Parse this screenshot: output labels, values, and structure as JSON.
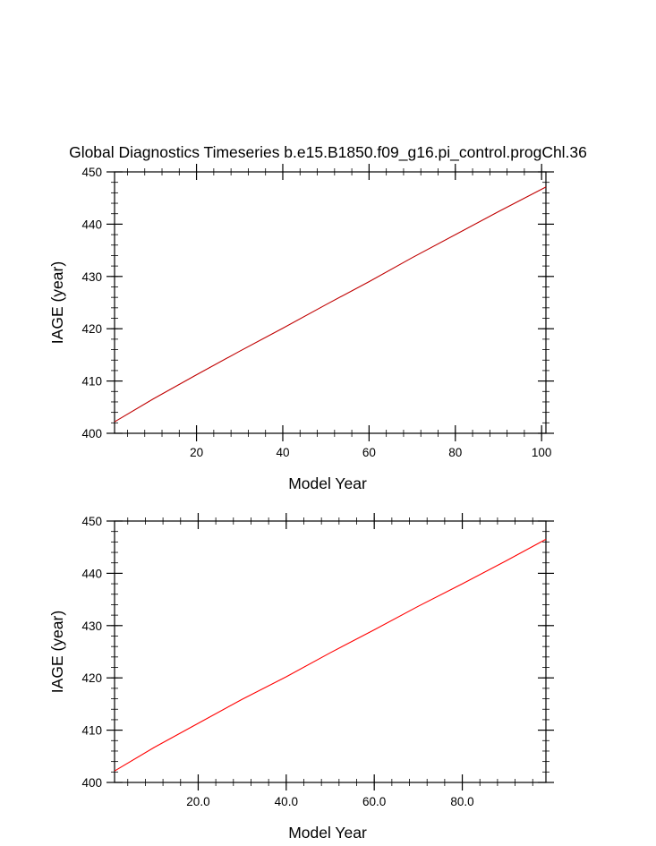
{
  "title": "Global Diagnostics Timeseries b.e15.B1850.f09_g16.pi_control.progChl.36",
  "chart_data": [
    {
      "type": "line",
      "xlabel": "Model Year",
      "ylabel": "IAGE (year)",
      "xlim": [
        1,
        101
      ],
      "ylim": [
        400,
        450
      ],
      "xticks": [
        20,
        40,
        60,
        80,
        100
      ],
      "xtick_labels": [
        "20",
        "40",
        "60",
        "80",
        "100"
      ],
      "yticks": [
        400,
        410,
        420,
        430,
        440,
        450
      ],
      "ytick_labels": [
        "400",
        "410",
        "420",
        "430",
        "440",
        "450"
      ],
      "series": [
        {
          "color": "#c00000",
          "x": [
            1,
            10,
            20,
            30,
            40,
            50,
            60,
            70,
            80,
            90,
            101
          ],
          "y": [
            402.2,
            406.6,
            411.2,
            415.7,
            420.1,
            424.6,
            429.0,
            433.6,
            438.0,
            442.4,
            447.1
          ]
        }
      ]
    },
    {
      "type": "line",
      "xlabel": "Model Year",
      "ylabel": "IAGE (year)",
      "xlim": [
        1,
        99
      ],
      "ylim": [
        400,
        450
      ],
      "xticks": [
        20,
        40,
        60,
        80
      ],
      "xtick_labels": [
        "20.0",
        "40.0",
        "60.0",
        "80.0"
      ],
      "yticks": [
        400,
        410,
        420,
        430,
        440,
        450
      ],
      "ytick_labels": [
        "400",
        "410",
        "420",
        "430",
        "440",
        "450"
      ],
      "series": [
        {
          "color": "#ff0000",
          "x": [
            1,
            10,
            20,
            30,
            40,
            50,
            60,
            70,
            80,
            90,
            99
          ],
          "y": [
            402.2,
            406.7,
            411.3,
            415.9,
            420.2,
            424.8,
            429.2,
            433.7,
            438.0,
            442.4,
            446.5
          ]
        }
      ]
    }
  ]
}
